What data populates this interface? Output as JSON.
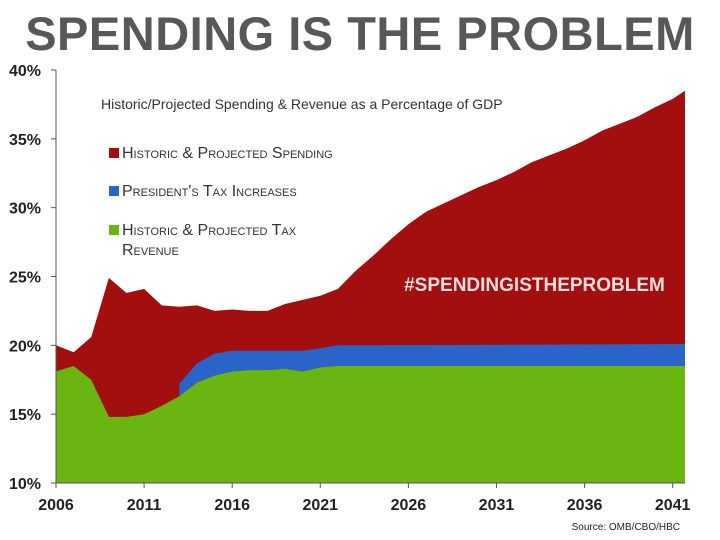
{
  "title": "SPENDING IS THE PROBLEM",
  "source": "Source: OMB/CBO/HBC",
  "hashtag": "#SPENDINGISTHEPROBLEM",
  "chart_data": {
    "type": "area",
    "title": "Historic/Projected Spending & Revenue as a Percentage of GDP",
    "xlabel": "",
    "ylabel": "",
    "xlim": [
      2006,
      2041.7
    ],
    "ylim": [
      10,
      40
    ],
    "x_ticks": [
      "2006",
      "2011",
      "2016",
      "2021",
      "2026",
      "2031",
      "2036",
      "2041"
    ],
    "y_ticks": [
      "10%",
      "15%",
      "20%",
      "25%",
      "30%",
      "35%",
      "40%"
    ],
    "grid": false,
    "legend_position": "top-left",
    "series": [
      {
        "name": "Historic & Projected Spending",
        "color": "#a30f0f",
        "x": [
          2006,
          2007,
          2008,
          2009,
          2010,
          2011,
          2012,
          2013,
          2014,
          2015,
          2016,
          2017,
          2018,
          2019,
          2020,
          2021,
          2022,
          2023,
          2024,
          2025,
          2026,
          2027,
          2028,
          2029,
          2030,
          2031,
          2032,
          2033,
          2034,
          2035,
          2036,
          2037,
          2038,
          2039,
          2040,
          2041,
          2041.7
        ],
        "values": [
          20.0,
          19.5,
          20.6,
          24.9,
          23.8,
          24.1,
          22.9,
          22.8,
          22.9,
          22.5,
          22.6,
          22.5,
          22.5,
          23.0,
          23.3,
          23.6,
          24.1,
          25.4,
          26.5,
          27.7,
          28.8,
          29.7,
          30.3,
          30.9,
          31.5,
          32.0,
          32.6,
          33.3,
          33.8,
          34.3,
          34.9,
          35.6,
          36.1,
          36.6,
          37.3,
          37.9,
          38.5
        ]
      },
      {
        "name": "President's Tax Increases",
        "color": "#2a64c8",
        "x": [
          2013,
          2014,
          2015,
          2016,
          2017,
          2018,
          2019,
          2020,
          2021,
          2022,
          2023,
          2041.7
        ],
        "values": [
          17.2,
          18.7,
          19.4,
          19.6,
          19.6,
          19.6,
          19.6,
          19.6,
          19.8,
          20.0,
          20.0,
          20.1
        ]
      },
      {
        "name": "Historic & Projected Tax Revenue",
        "color": "#6bb512",
        "x": [
          2006,
          2007,
          2008,
          2009,
          2010,
          2011,
          2012,
          2013,
          2014,
          2015,
          2016,
          2017,
          2018,
          2019,
          2020,
          2021,
          2022,
          2023,
          2041.7
        ],
        "values": [
          18.1,
          18.5,
          17.5,
          14.8,
          14.8,
          15.0,
          15.6,
          16.3,
          17.3,
          17.8,
          18.1,
          18.2,
          18.2,
          18.3,
          18.1,
          18.4,
          18.5,
          18.5,
          18.5
        ]
      }
    ]
  }
}
